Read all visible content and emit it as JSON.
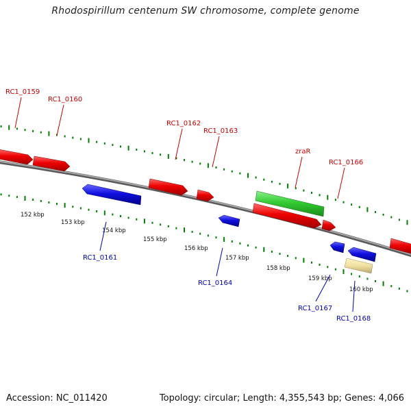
{
  "title": "Rhodospirillum centenum SW chromosome, complete genome",
  "footer": {
    "accession": "Accession: NC_011420",
    "summary": "Topology: circular; Length: 4,355,543 bp; Genes: 4,066"
  },
  "colors": {
    "forward_gene": "#ee0000",
    "reverse_gene": "#1010e0",
    "highlight_gene": "#33cc33",
    "pseudo_gene": "#f0e0a0",
    "backbone": "#808080",
    "tick": "#008000",
    "forward_label": "#cc0000",
    "reverse_label": "#0000bb"
  },
  "scale_labels": [
    "152 kbp",
    "153 kbp",
    "154 kbp",
    "155 kbp",
    "156 kbp",
    "157 kbp",
    "158 kbp",
    "159 kbp",
    "160 kbp"
  ],
  "forward_labels": [
    "RC1_0159",
    "RC1_0160",
    "RC1_0162",
    "RC1_0163",
    "zraR",
    "RC1_0166"
  ],
  "reverse_labels": [
    "RC1_0161",
    "RC1_0164",
    "RC1_0167",
    "RC1_0168"
  ]
}
